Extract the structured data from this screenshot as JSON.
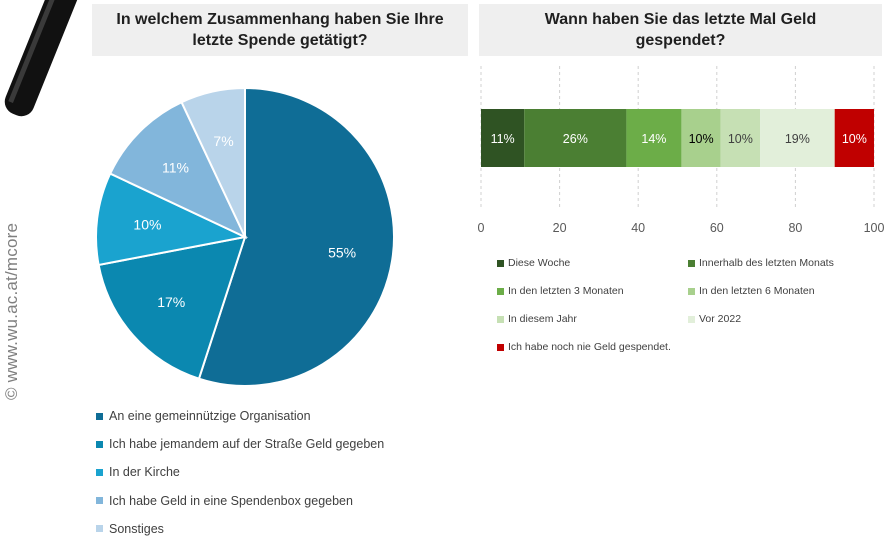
{
  "watermark": "© www.wu.ac.at/mcore",
  "chart_data": [
    {
      "type": "pie",
      "title": "In welchem Zusammenhang haben Sie Ihre\nletzte Spende getätigt?",
      "slices": [
        {
          "label": "An eine gemeinnützige Organisation",
          "value": 55,
          "text": "55%",
          "color": "#0f6d96"
        },
        {
          "label": "Ich habe jemandem auf der Straße Geld gegeben",
          "value": 17,
          "text": "17%",
          "color": "#0b88b0"
        },
        {
          "label": "In der Kirche",
          "value": 10,
          "text": "10%",
          "color": "#1aa3cf"
        },
        {
          "label": "Ich habe Geld in eine Spendenbox gegeben",
          "value": 11,
          "text": "11%",
          "color": "#82b6db"
        },
        {
          "label": "Sonstiges",
          "value": 7,
          "text": "7%",
          "color": "#b9d4ea"
        }
      ],
      "legend_position": "bottom-left"
    },
    {
      "type": "bar",
      "orientation": "horizontal-stacked",
      "title": "Wann haben Sie das letzte Mal Geld\ngespendet?",
      "xlim": [
        0,
        100
      ],
      "xticks": [
        "0",
        "20",
        "40",
        "60",
        "80",
        "100"
      ],
      "grid": true,
      "series": [
        {
          "name": "Diese Woche",
          "value": 11,
          "text": "11%",
          "color": "#2f5323",
          "label_color": "#ffffff"
        },
        {
          "name": "Innerhalb des letzten Monats",
          "value": 26,
          "text": "26%",
          "color": "#4b7f33",
          "label_color": "#ffffff"
        },
        {
          "name": "In den letzten 3 Monaten",
          "value": 14,
          "text": "14%",
          "color": "#6cad48",
          "label_color": "#ffffff"
        },
        {
          "name": "In den letzten 6 Monaten",
          "value": 10,
          "text": "10%",
          "color": "#a8d08d",
          "label_color": "#000000"
        },
        {
          "name": "In diesem Jahr",
          "value": 10,
          "text": "10%",
          "color": "#c6e0b4",
          "label_color": "#404040"
        },
        {
          "name": "Vor 2022",
          "value": 19,
          "text": "19%",
          "color": "#e2efda",
          "label_color": "#404040"
        },
        {
          "name": "Ich habe noch nie Geld gespendet.",
          "value": 10,
          "text": "10%",
          "color": "#c00000",
          "label_color": "#ffffff"
        }
      ],
      "legend_position": "bottom"
    }
  ]
}
